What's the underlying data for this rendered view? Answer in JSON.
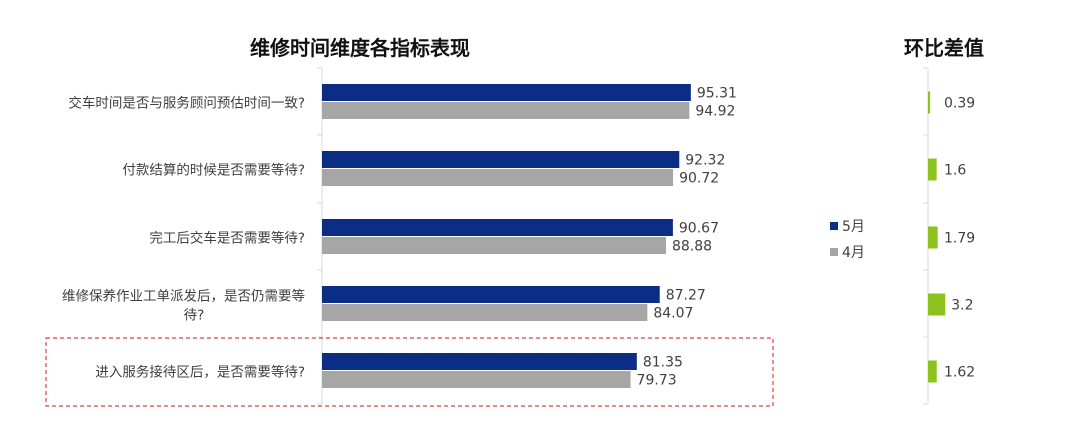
{
  "chart_data": [
    {
      "type": "bar",
      "orientation": "horizontal",
      "title": "维修时间维度各指标表现",
      "categories": [
        "交车时间是否与服务顾问预估时间一致?",
        "付款结算的时候是否需要等待?",
        "完工后交车是否需要等待?",
        "维修保养作业工单派发后，是否仍需要等待?",
        "进入服务接待区后，是否需要等待?"
      ],
      "series": [
        {
          "name": "5月",
          "values": [
            95.31,
            92.32,
            90.67,
            87.27,
            81.35
          ],
          "color": "#0b2d86"
        },
        {
          "name": "4月",
          "values": [
            94.92,
            90.72,
            88.88,
            84.07,
            79.73
          ],
          "color": "#a6a6a6"
        }
      ],
      "xlim": [
        0,
        100
      ],
      "legend": "right",
      "grid": false,
      "highlight_category_index": 4,
      "highlight_color": "#e04040"
    },
    {
      "type": "bar",
      "orientation": "horizontal",
      "title": "环比差值",
      "categories": [
        "交车时间是否与服务顾问预估时间一致?",
        "付款结算的时候是否需要等待?",
        "完工后交车是否需要等待?",
        "维修保养作业工单派发后，是否仍需要等待?",
        "进入服务接待区后，是否需要等待?"
      ],
      "values": [
        0.39,
        1.6,
        1.79,
        3.2,
        1.62
      ],
      "labels": [
        "0.39",
        "1.6",
        "1.79",
        "3.2",
        "1.62"
      ],
      "color": "#8dc21f",
      "xlim": [
        0,
        6
      ],
      "grid": false
    }
  ]
}
